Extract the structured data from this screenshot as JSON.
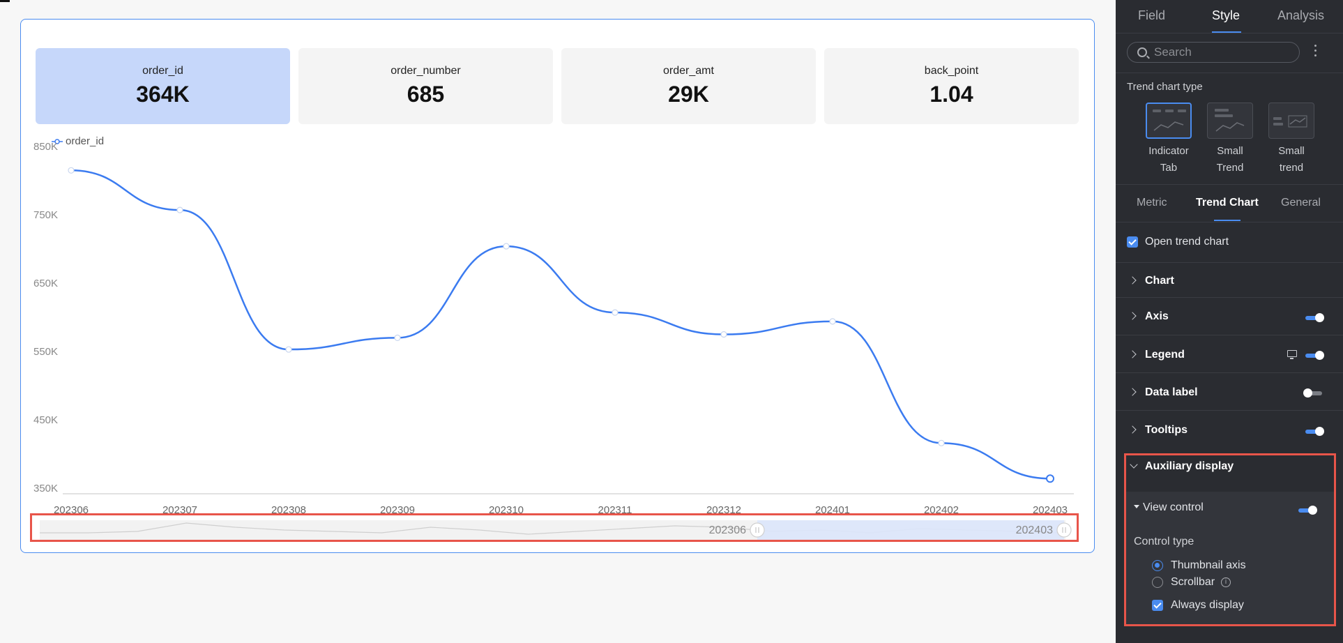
{
  "metrics": [
    {
      "label": "order_id",
      "value": "364K",
      "active": true
    },
    {
      "label": "order_number",
      "value": "685",
      "active": false
    },
    {
      "label": "order_amt",
      "value": "29K",
      "active": false
    },
    {
      "label": "back_point",
      "value": "1.04",
      "active": false
    }
  ],
  "legend": {
    "label": "order_id"
  },
  "chart_data": {
    "type": "line",
    "x": [
      "202306",
      "202307",
      "202308",
      "202309",
      "202310",
      "202311",
      "202312",
      "202401",
      "202402",
      "202403"
    ],
    "series": [
      {
        "name": "order_id",
        "values": [
          815000,
          757000,
          553000,
          570000,
          704000,
          607000,
          575000,
          594000,
          416000,
          364000
        ]
      }
    ],
    "yticks": [
      "850K",
      "750K",
      "650K",
      "550K",
      "450K",
      "350K"
    ],
    "ylim": [
      350000,
      850000
    ],
    "color": "#3b7bf0",
    "smooth": true,
    "thumbnail_axis": {
      "start_label": "202306",
      "end_label": "202403"
    }
  },
  "panel": {
    "tabs": [
      "Field",
      "Style",
      "Analysis"
    ],
    "active_tab": "Style",
    "search_placeholder": "Search",
    "trend_chart_type_title": "Trend chart type",
    "trend_types": [
      {
        "label_line1": "Indicator",
        "label_line2": "Tab",
        "active": true
      },
      {
        "label_line1": "Small",
        "label_line2": "Trend",
        "active": false
      },
      {
        "label_line1": "Small",
        "label_line2": "trend",
        "active": false
      }
    ],
    "sub_tabs": [
      "Metric",
      "Trend Chart",
      "General"
    ],
    "active_sub_tab": "Trend Chart",
    "open_trend_chart": "Open trend chart",
    "sections": {
      "chart": "Chart",
      "axis": "Axis",
      "legend": "Legend",
      "data_label": "Data label",
      "tooltips": "Tooltips",
      "auxiliary_display": "Auxiliary display"
    },
    "view_control": "View control",
    "control_type": "Control type",
    "options": {
      "thumbnail_axis": "Thumbnail axis",
      "scrollbar": "Scrollbar",
      "always_display": "Always display"
    },
    "accent_color": "#4a8cf0"
  }
}
